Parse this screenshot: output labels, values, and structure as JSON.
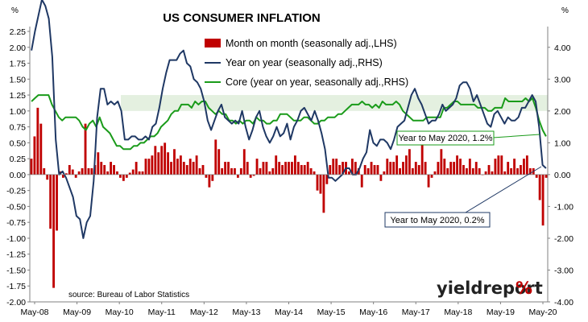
{
  "colors": {
    "bars": "#c00000",
    "yoy": "#1f3864",
    "core": "#1a9b1a",
    "band": "#d9ead3",
    "brand_text": "#222222",
    "brand_accent": "#c00000"
  },
  "brand": {
    "name": "yieldreport",
    "symbol": "%"
  },
  "source": "source: Bureau of Labor Statistics",
  "chart_data": {
    "type": "bar+line",
    "title": "US CONSUMER INFLATION",
    "left_axis_unit": "%",
    "right_axis_unit": "%",
    "ylim_left": [
      -2.0,
      2.25
    ],
    "ylim_right": [
      -4.0,
      4.5
    ],
    "left_ticks": [
      "2.25",
      "2.00",
      "1.75",
      "1.50",
      "1.25",
      "1.00",
      "0.75",
      "0.50",
      "0.25",
      "0.00",
      "-0.25",
      "-0.50",
      "-0.75",
      "-1.00",
      "-1.25",
      "-1.50",
      "-1.75",
      "-2.00"
    ],
    "right_ticks": [
      "4.00",
      "3.00",
      "2.00",
      "1.00",
      "0.00",
      "-1.00",
      "-2.00",
      "-3.00",
      "-4.00"
    ],
    "x_ticks": [
      "May-08",
      "May-09",
      "May-10",
      "May-11",
      "May-12",
      "May-13",
      "May-14",
      "May-15",
      "May-16",
      "May-17",
      "May-18",
      "May-19",
      "May-20"
    ],
    "legend": [
      "Month on month (seasonally adj.,LHS)",
      "Year on year (seasonally adj.,RHS)",
      "Core (year on year, seasonally adj.,RHS)"
    ],
    "annotations": [
      "Year to May 2020, 1.2%",
      "Year to May 2020, 0.2%"
    ],
    "band_range": [
      1.0,
      1.25
    ],
    "series": [
      {
        "name": "Month on month (seasonally adj.,LHS)",
        "axis": "left",
        "type": "bar",
        "values": [
          0.25,
          0.6,
          1.05,
          0.8,
          0.1,
          -0.08,
          -0.85,
          -1.78,
          -0.88,
          0.05,
          -0.05,
          0.02,
          0.15,
          0.08,
          -0.05,
          0.05,
          0.1,
          0.8,
          0.1,
          0.1,
          0.15,
          0.35,
          0.2,
          0.15,
          0.05,
          0.2,
          0.15,
          0.05,
          -0.05,
          -0.1,
          -0.05,
          0.03,
          0.08,
          0.2,
          0.05,
          0.05,
          0.25,
          0.25,
          0.3,
          0.45,
          0.35,
          0.45,
          0.5,
          0.35,
          0.2,
          0.4,
          0.25,
          0.3,
          0.2,
          0.15,
          0.25,
          0.2,
          0.3,
          0.1,
          0.15,
          -0.05,
          -0.2,
          -0.1,
          0.55,
          0.4,
          0.1,
          0.2,
          0.2,
          0.1,
          0.1,
          -0.05,
          0.1,
          0.4,
          0.2,
          -0.05,
          -0.02,
          0.25,
          0.1,
          0.2,
          0.2,
          0.05,
          0.1,
          0.3,
          0.2,
          0.15,
          0.2,
          0.2,
          0.2,
          0.3,
          0.2,
          0.15,
          0.15,
          0.2,
          0.1,
          0.05,
          -0.25,
          -0.3,
          -0.6,
          -0.15,
          0.15,
          0.25,
          0.25,
          0.15,
          0.2,
          0.2,
          0.05,
          0.25,
          0.2,
          0.1,
          -0.2,
          0.15,
          0.1,
          0.2,
          0.15,
          0.15,
          -0.1,
          0.05,
          0.25,
          0.2,
          0.2,
          0.3,
          0.1,
          0.2,
          0.3,
          0.4,
          0.1,
          0.2,
          0.15,
          0.5,
          0.2,
          -0.2,
          -0.05,
          0.05,
          0.2,
          0.4,
          0.25,
          0.1,
          0.2,
          0.2,
          0.3,
          0.25,
          0.15,
          0.1,
          0.25,
          0.1,
          0.2,
          0.1,
          0.0,
          0.05,
          0.15,
          0.05,
          0.25,
          0.3,
          0.3,
          0.05,
          0.2,
          0.1,
          0.25,
          0.1,
          0.15,
          0.25,
          0.3,
          0.1,
          0.1,
          -0.05,
          -0.4,
          -0.8,
          -0.05
        ]
      },
      {
        "name": "Year on year (seasonally adj.,RHS)",
        "axis": "right",
        "type": "line",
        "values": [
          3.9,
          4.5,
          5.0,
          5.5,
          5.3,
          4.9,
          3.7,
          1.1,
          0.0,
          0.1,
          -0.1,
          -0.4,
          -0.7,
          -1.3,
          -1.4,
          -2.0,
          -1.5,
          -1.3,
          -0.2,
          1.8,
          2.7,
          2.7,
          2.2,
          2.3,
          2.2,
          2.3,
          2.0,
          1.1,
          1.1,
          1.2,
          1.2,
          1.1,
          1.1,
          1.2,
          1.1,
          1.5,
          1.6,
          2.1,
          2.7,
          3.2,
          3.6,
          3.6,
          3.6,
          3.8,
          3.9,
          3.5,
          3.4,
          3.0,
          2.9,
          2.7,
          2.3,
          1.7,
          1.4,
          1.7,
          2.0,
          2.2,
          1.8,
          1.7,
          1.6,
          1.7,
          1.6,
          2.0,
          1.5,
          1.1,
          1.4,
          1.8,
          2.0,
          1.5,
          1.2,
          1.0,
          1.2,
          1.5,
          1.2,
          1.3,
          1.6,
          1.1,
          1.5,
          1.7,
          2.0,
          2.1,
          1.9,
          1.7,
          2.0,
          1.7,
          1.3,
          0.8,
          -0.1,
          -0.1,
          -0.2,
          -0.1,
          0.0,
          0.2,
          0.2,
          0.0,
          0.0,
          0.2,
          0.5,
          0.7,
          1.4,
          1.0,
          0.9,
          1.1,
          1.1,
          1.0,
          0.8,
          1.1,
          1.5,
          1.6,
          1.7,
          2.1,
          2.5,
          2.7,
          2.4,
          2.2,
          1.9,
          1.6,
          1.7,
          1.7,
          1.9,
          2.2,
          2.0,
          2.1,
          2.2,
          2.4,
          2.8,
          2.9,
          2.9,
          2.7,
          2.3,
          2.5,
          2.2,
          1.9,
          1.6,
          1.5,
          1.9,
          2.0,
          1.8,
          1.6,
          1.8,
          1.7,
          1.7,
          1.8,
          2.1,
          2.1,
          2.3,
          2.5,
          2.3,
          1.5,
          0.3,
          0.2
        ]
      },
      {
        "name": "Core (year on year, seasonally adj.,RHS)",
        "axis": "right",
        "type": "line",
        "values": [
          2.3,
          2.4,
          2.5,
          2.5,
          2.5,
          2.5,
          2.2,
          2.0,
          1.8,
          1.7,
          1.8,
          1.8,
          1.8,
          1.8,
          1.7,
          1.5,
          1.4,
          1.6,
          1.7,
          1.5,
          1.8,
          1.5,
          1.4,
          1.3,
          1.1,
          0.9,
          0.9,
          0.8,
          0.8,
          0.8,
          0.9,
          0.9,
          1.0,
          1.0,
          1.1,
          1.2,
          1.2,
          1.3,
          1.5,
          1.6,
          1.7,
          1.9,
          2.0,
          2.0,
          2.2,
          2.2,
          2.2,
          2.1,
          2.3,
          2.2,
          2.3,
          2.3,
          2.1,
          2.0,
          1.9,
          2.0,
          1.9,
          1.9,
          1.7,
          1.7,
          1.6,
          1.7,
          1.6,
          1.7,
          1.7,
          1.6,
          1.8,
          1.7,
          1.7,
          1.6,
          1.6,
          1.7,
          1.7,
          1.9,
          1.9,
          1.9,
          1.8,
          1.7,
          1.7,
          1.7,
          1.8,
          1.8,
          1.7,
          1.6,
          1.6,
          1.7,
          1.7,
          1.8,
          1.8,
          1.8,
          1.9,
          1.9,
          2.0,
          2.1,
          2.2,
          2.2,
          2.2,
          2.3,
          2.2,
          2.2,
          2.1,
          2.2,
          2.1,
          2.3,
          2.2,
          2.2,
          2.2,
          2.3,
          2.2,
          2.0,
          1.9,
          1.8,
          1.7,
          1.7,
          1.7,
          1.7,
          1.8,
          1.8,
          1.8,
          1.8,
          1.8,
          2.1,
          2.1,
          2.2,
          2.3,
          2.3,
          2.2,
          2.2,
          2.2,
          2.2,
          2.2,
          2.1,
          2.1,
          2.1,
          2.0,
          2.0,
          2.1,
          2.1,
          2.1,
          2.4,
          2.3,
          2.3,
          2.3,
          2.3,
          2.3,
          2.4,
          2.3,
          2.4,
          2.1,
          1.7,
          1.4,
          1.2
        ]
      }
    ]
  }
}
